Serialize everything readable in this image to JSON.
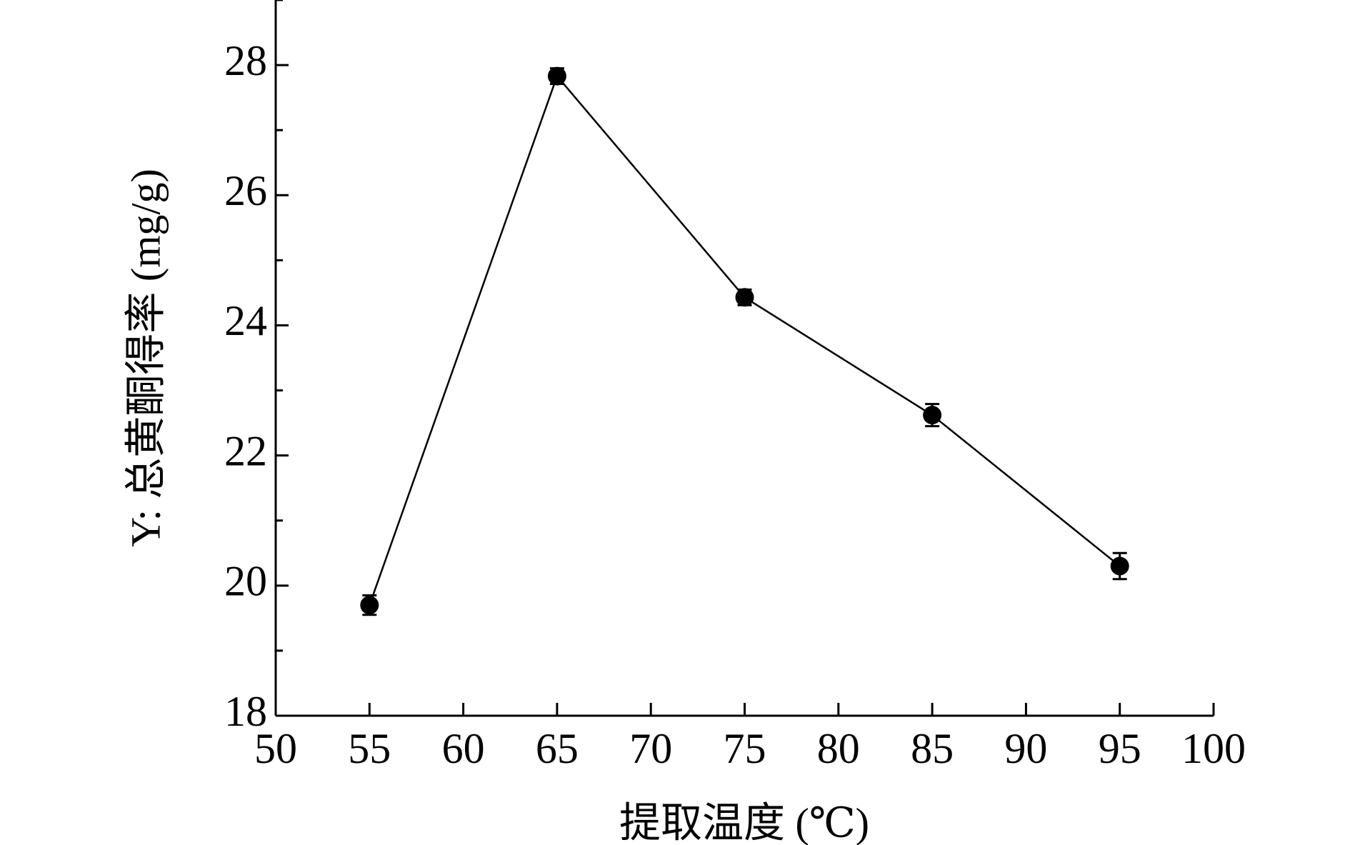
{
  "chart_data": {
    "type": "line",
    "x_label": "提取温度 (℃)",
    "y_label": "Y: 总黄酮得率 (mg/g)",
    "x": [
      55,
      65,
      75,
      85,
      95
    ],
    "series": [
      {
        "color": "#000000",
        "values": [
          19.7,
          27.83,
          24.43,
          22.62,
          20.3
        ],
        "errors": [
          0.15,
          0.12,
          0.12,
          0.17,
          0.2
        ]
      }
    ],
    "xlim": [
      50,
      100
    ],
    "xticks": [
      50,
      55,
      60,
      65,
      70,
      75,
      80,
      85,
      90,
      95,
      100
    ],
    "ylim": [
      18,
      29
    ],
    "yticks": [
      18,
      20,
      22,
      24,
      26,
      28
    ],
    "grid": false
  }
}
